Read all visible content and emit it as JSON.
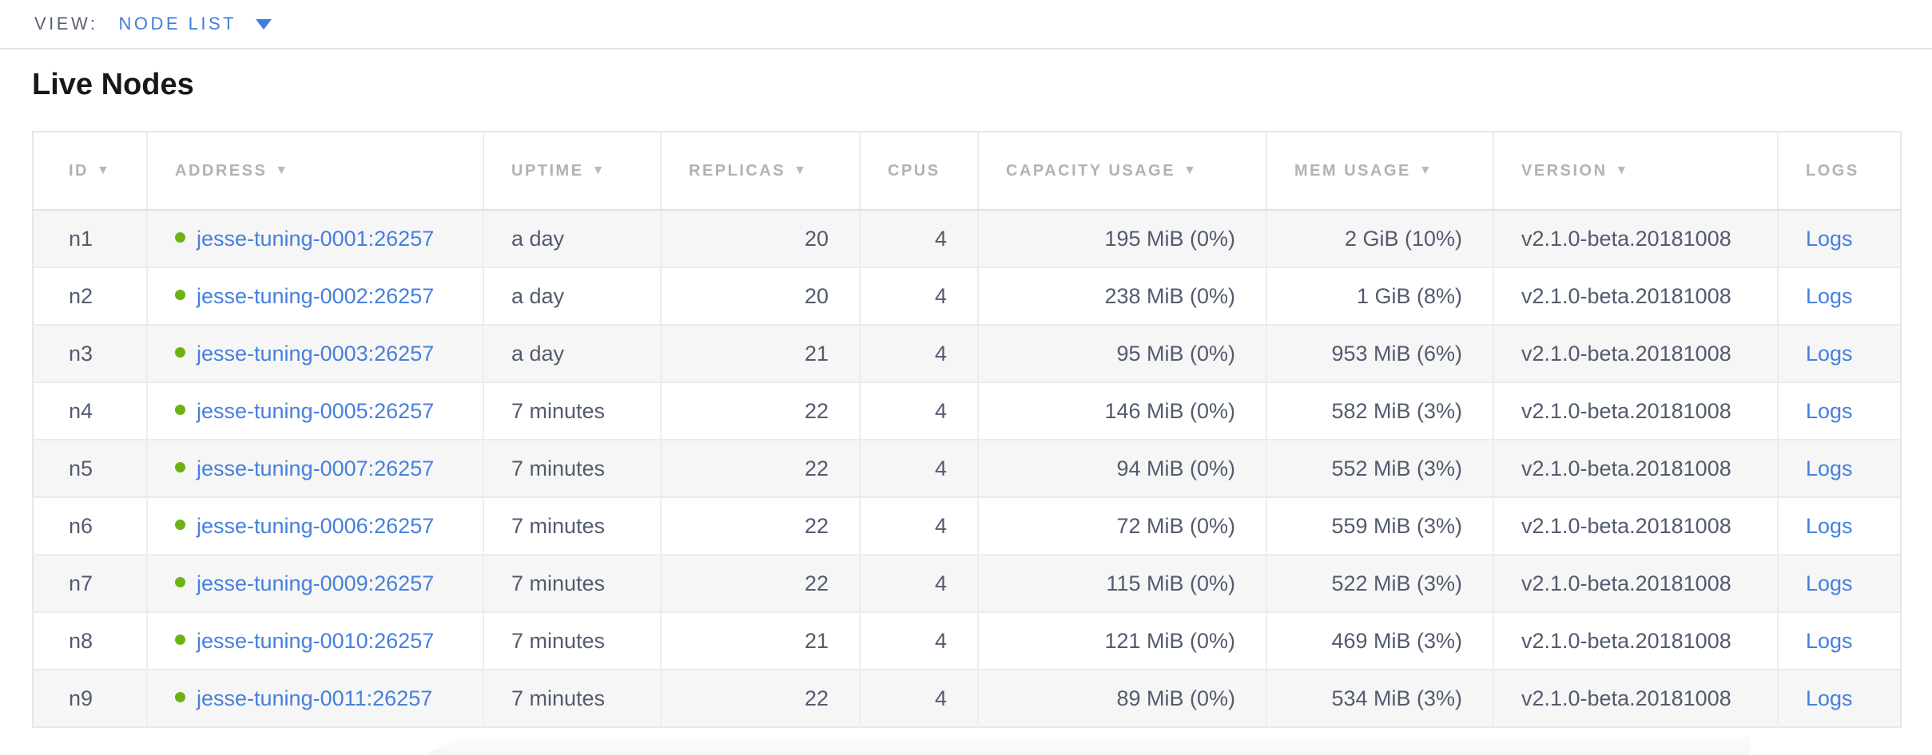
{
  "view_bar": {
    "label": "VIEW:",
    "selected": "NODE LIST"
  },
  "page_title": "Live Nodes",
  "table": {
    "sort_indicator": "▼",
    "logs_label": "Logs",
    "columns": [
      {
        "label": "ID",
        "sorted": true
      },
      {
        "label": "ADDRESS",
        "sorted": true
      },
      {
        "label": "UPTIME",
        "sorted": true
      },
      {
        "label": "REPLICAS",
        "sorted": true
      },
      {
        "label": "CPUS",
        "sorted": false
      },
      {
        "label": "CAPACITY USAGE",
        "sorted": true
      },
      {
        "label": "MEM USAGE",
        "sorted": true
      },
      {
        "label": "VERSION",
        "sorted": true
      },
      {
        "label": "LOGS",
        "sorted": false
      }
    ],
    "rows": [
      {
        "id": "n1",
        "address": "jesse-tuning-0001:26257",
        "uptime": "a day",
        "replicas": "20",
        "cpus": "4",
        "capacity_usage": "195 MiB (0%)",
        "mem_usage": "2 GiB (10%)",
        "version": "v2.1.0-beta.20181008"
      },
      {
        "id": "n2",
        "address": "jesse-tuning-0002:26257",
        "uptime": "a day",
        "replicas": "20",
        "cpus": "4",
        "capacity_usage": "238 MiB (0%)",
        "mem_usage": "1 GiB (8%)",
        "version": "v2.1.0-beta.20181008"
      },
      {
        "id": "n3",
        "address": "jesse-tuning-0003:26257",
        "uptime": "a day",
        "replicas": "21",
        "cpus": "4",
        "capacity_usage": "95 MiB (0%)",
        "mem_usage": "953 MiB (6%)",
        "version": "v2.1.0-beta.20181008"
      },
      {
        "id": "n4",
        "address": "jesse-tuning-0005:26257",
        "uptime": "7 minutes",
        "replicas": "22",
        "cpus": "4",
        "capacity_usage": "146 MiB (0%)",
        "mem_usage": "582 MiB (3%)",
        "version": "v2.1.0-beta.20181008"
      },
      {
        "id": "n5",
        "address": "jesse-tuning-0007:26257",
        "uptime": "7 minutes",
        "replicas": "22",
        "cpus": "4",
        "capacity_usage": "94 MiB (0%)",
        "mem_usage": "552 MiB (3%)",
        "version": "v2.1.0-beta.20181008"
      },
      {
        "id": "n6",
        "address": "jesse-tuning-0006:26257",
        "uptime": "7 minutes",
        "replicas": "22",
        "cpus": "4",
        "capacity_usage": "72 MiB (0%)",
        "mem_usage": "559 MiB (3%)",
        "version": "v2.1.0-beta.20181008"
      },
      {
        "id": "n7",
        "address": "jesse-tuning-0009:26257",
        "uptime": "7 minutes",
        "replicas": "22",
        "cpus": "4",
        "capacity_usage": "115 MiB (0%)",
        "mem_usage": "522 MiB (3%)",
        "version": "v2.1.0-beta.20181008"
      },
      {
        "id": "n8",
        "address": "jesse-tuning-0010:26257",
        "uptime": "7 minutes",
        "replicas": "21",
        "cpus": "4",
        "capacity_usage": "121 MiB (0%)",
        "mem_usage": "469 MiB (3%)",
        "version": "v2.1.0-beta.20181008"
      },
      {
        "id": "n9",
        "address": "jesse-tuning-0011:26257",
        "uptime": "7 minutes",
        "replicas": "22",
        "cpus": "4",
        "capacity_usage": "89 MiB (0%)",
        "mem_usage": "534 MiB (3%)",
        "version": "v2.1.0-beta.20181008"
      }
    ]
  },
  "colors": {
    "link_blue": "#4680dd",
    "accent_blue": "#3f7ce0",
    "healthy_green": "#6db213"
  }
}
